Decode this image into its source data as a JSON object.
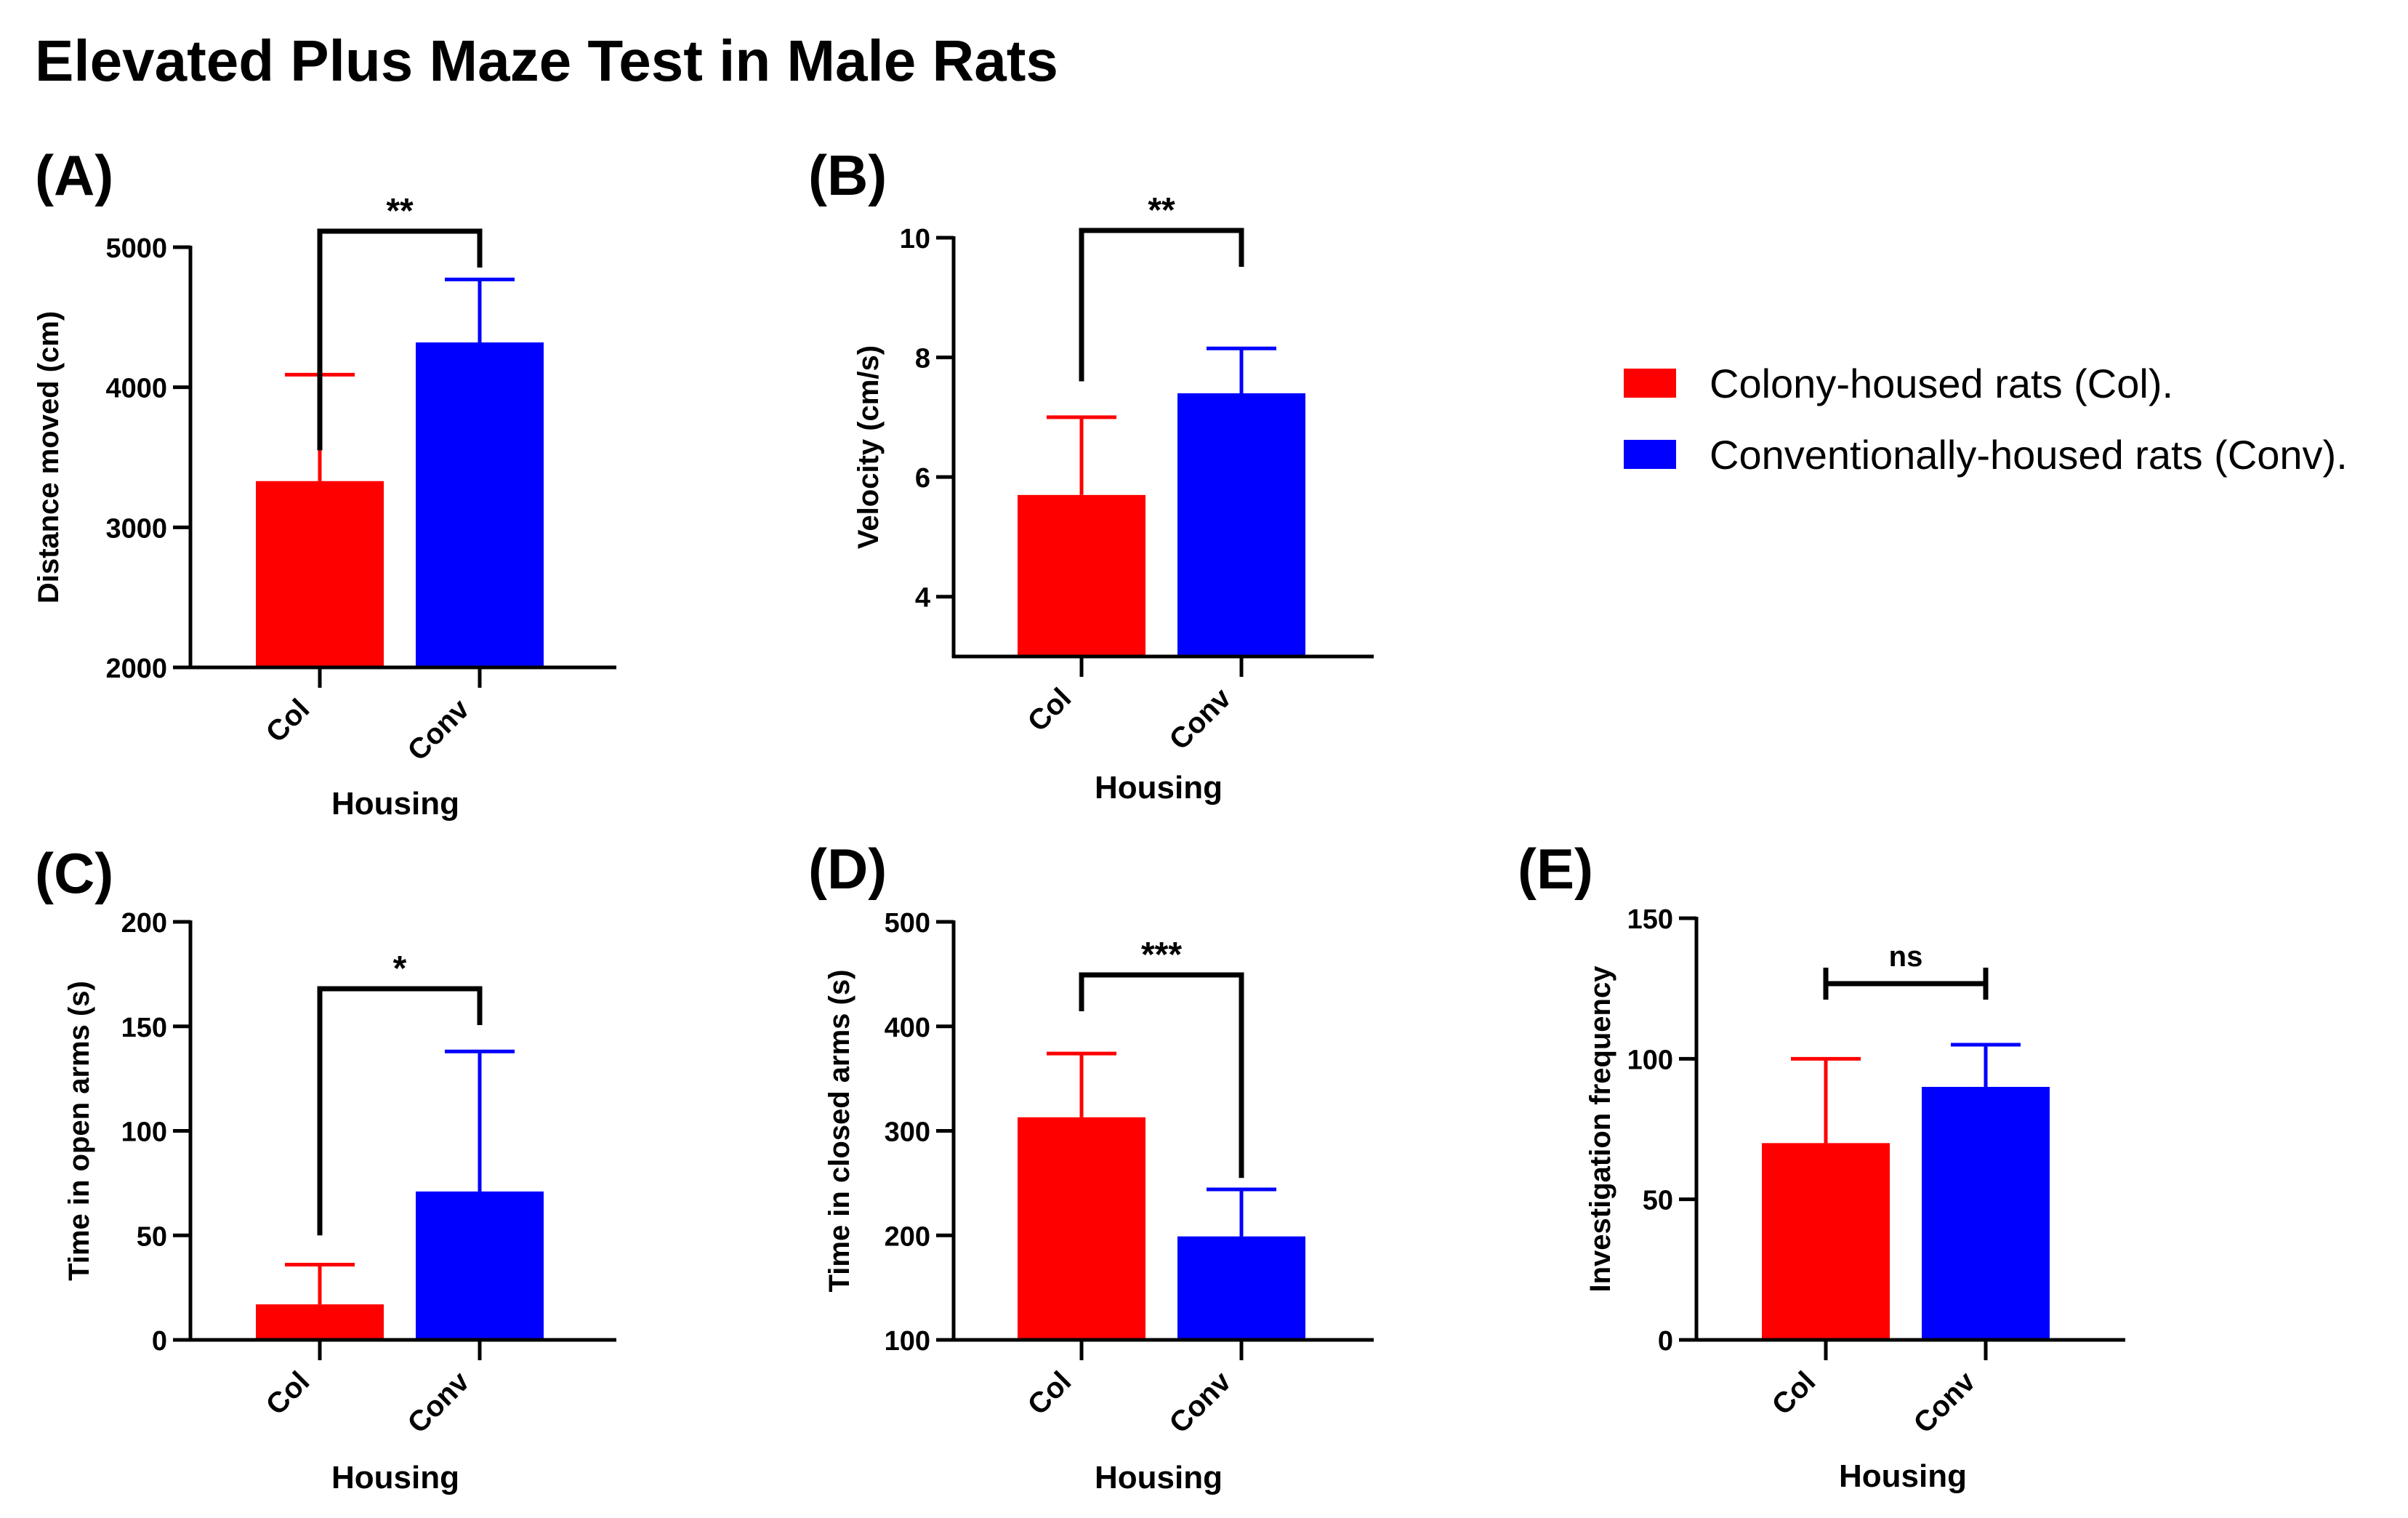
{
  "figure_title": "Elevated Plus Maze Test in Male Rats",
  "colors": {
    "col": "#ff0000",
    "conv": "#0000ff",
    "axis": "#000000"
  },
  "legend": {
    "items": [
      {
        "label": "Colony-housed rats (Col).",
        "color": "#ff0000"
      },
      {
        "label": "Conventionally-housed rats (Conv).",
        "color": "#0000ff"
      }
    ]
  },
  "chart_data": [
    {
      "panel": "(A)",
      "type": "bar",
      "categories": [
        "Col",
        "Conv"
      ],
      "values": [
        3330,
        4320
      ],
      "errors": [
        760,
        450
      ],
      "ylabel": "Distance moved (cm)",
      "xlabel": "Housing",
      "ylim": [
        2000,
        5000
      ],
      "yticks": [
        2000,
        3000,
        4000,
        5000
      ],
      "significance": "**",
      "bracket_style": "down",
      "bracket_left_drop_to": 3550
    },
    {
      "panel": "(B)",
      "type": "bar",
      "categories": [
        "Col",
        "Conv"
      ],
      "values": [
        5.7,
        7.4
      ],
      "errors": [
        1.3,
        0.75
      ],
      "ylabel": "Velocity (cm/s)",
      "xlabel": "Housing",
      "ylim": [
        3,
        10
      ],
      "yticks": [
        4,
        6,
        8,
        10
      ],
      "significance": "**",
      "bracket_style": "down",
      "bracket_left_drop_to": 7.6
    },
    {
      "panel": "(C)",
      "type": "bar",
      "categories": [
        "Col",
        "Conv"
      ],
      "values": [
        17,
        71
      ],
      "errors": [
        19,
        67
      ],
      "ylabel": "Time in open arms (s)",
      "xlabel": "Housing",
      "ylim": [
        0,
        200
      ],
      "yticks": [
        0,
        50,
        100,
        150,
        200
      ],
      "significance": "*",
      "bracket_style": "down",
      "bracket_left_drop_to": 50
    },
    {
      "panel": "(D)",
      "type": "bar",
      "categories": [
        "Col",
        "Conv"
      ],
      "values": [
        313,
        199
      ],
      "errors": [
        61,
        45
      ],
      "ylabel": "Time in closed arms (s)",
      "xlabel": "Housing",
      "ylim": [
        100,
        500
      ],
      "yticks": [
        100,
        200,
        300,
        400,
        500
      ],
      "significance": "***",
      "bracket_style": "down",
      "bracket_right_drop_to": 255
    },
    {
      "panel": "(E)",
      "type": "bar",
      "categories": [
        "Col",
        "Conv"
      ],
      "values": [
        70,
        90
      ],
      "errors": [
        30,
        15
      ],
      "ylabel": "Investigation frequency",
      "xlabel": "Housing",
      "ylim": [
        0,
        150
      ],
      "yticks": [
        0,
        50,
        100,
        150
      ],
      "significance": "ns",
      "bracket_style": "ibeam"
    }
  ]
}
